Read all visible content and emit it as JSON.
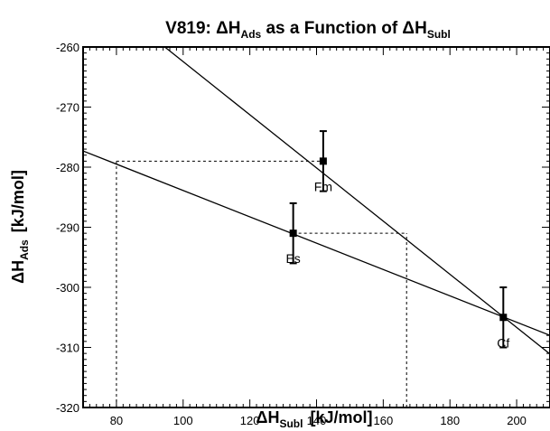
{
  "chart_data": {
    "type": "scatter",
    "title": {
      "prefix": "V819: ΔH",
      "sub1": "Ads",
      "mid": " as a Function of ΔH",
      "sub2": "Subl"
    },
    "xlabel": {
      "main": "ΔH",
      "sub": "Subl",
      "unit": "[kJ/mol]"
    },
    "ylabel": {
      "main": "ΔH",
      "sub": "Ads",
      "unit": "[kJ/mol]"
    },
    "xlim": [
      70,
      210
    ],
    "ylim": [
      -320,
      -260
    ],
    "x_ticks": [
      80,
      100,
      120,
      140,
      160,
      180,
      200
    ],
    "y_ticks": [
      -320,
      -310,
      -300,
      -290,
      -280,
      -270,
      -260
    ],
    "grid": false,
    "points": [
      {
        "name": "Es",
        "x": 133,
        "y": -291,
        "err": 5
      },
      {
        "name": "Fm",
        "x": 142,
        "y": -279,
        "err": 5
      },
      {
        "name": "Cf",
        "x": 196,
        "y": -305,
        "err": 5
      }
    ],
    "fit_lines": [
      {
        "x": [
          70,
          210
        ],
        "y": [
          -277.3,
          -308.0
        ]
      },
      {
        "x": [
          94.5,
          210
        ],
        "y": [
          -260,
          -311.1
        ]
      }
    ],
    "reference_lines": [
      {
        "x": 80,
        "y": -279
      },
      {
        "x": 167,
        "y": -291
      }
    ]
  }
}
